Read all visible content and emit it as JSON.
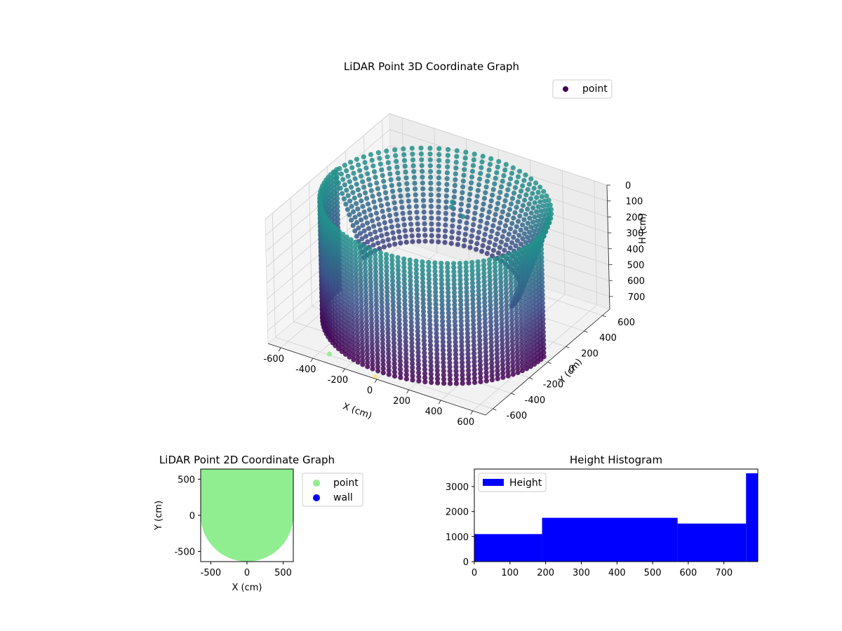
{
  "chart_data": [
    {
      "type": "scatter",
      "projection": "3d",
      "title": "LiDAR Point 3D Coordinate Graph",
      "xlabel": "X (cm)",
      "ylabel": "Y (cm)",
      "zlabel": "H (cm)",
      "xlim": [
        -680,
        680
      ],
      "ylim": [
        -680,
        680
      ],
      "zlim": [
        0,
        780
      ],
      "z_inverted": true,
      "xticks": [
        -600,
        -400,
        -200,
        0,
        200,
        400,
        600
      ],
      "yticks": [
        -600,
        -400,
        -200,
        0,
        200,
        400,
        600
      ],
      "zticks": [
        0,
        100,
        200,
        300,
        400,
        500,
        600,
        700
      ],
      "colormap": "viridis",
      "grid": true,
      "legend": {
        "position": "upper-right",
        "entries": [
          {
            "label": "point",
            "color": "#440154"
          }
        ]
      },
      "series": [
        {
          "name": "point",
          "shape": "half-cylinder wall of points, radius ≈ 640 cm, y ≤ 0 side spans heights 0–780 cm, far side (y > 0) as vertical scan lines",
          "radius": 640,
          "h_range": [
            0,
            780
          ]
        },
        {
          "shape": "small cluster near center at low height",
          "points": [
            {
              "x": 60,
              "y": 60,
              "h": 40
            },
            {
              "x": 120,
              "y": 80,
              "h": 90
            },
            {
              "x": 20,
              "y": 140,
              "h": 60
            }
          ]
        },
        {
          "shape": "isolated markers",
          "points": [
            {
              "x": -330,
              "y": -620,
              "h": 760,
              "color": "#90ee90"
            },
            {
              "x": -20,
              "y": -660,
              "h": 780,
              "color": "#ffe680"
            }
          ]
        }
      ]
    },
    {
      "type": "scatter",
      "title": "LiDAR Point 2D Coordinate Graph",
      "xlabel": "X (cm)",
      "ylabel": "Y (cm)",
      "xlim": [
        -640,
        640
      ],
      "ylim": [
        -640,
        640
      ],
      "xticks": [
        -500,
        0,
        500
      ],
      "yticks": [
        -500,
        0,
        500
      ],
      "legend": {
        "position": "outside-right",
        "entries": [
          {
            "label": "point",
            "color": "#90ee90"
          },
          {
            "label": "wall",
            "color": "#0000ff"
          }
        ]
      },
      "series": [
        {
          "name": "point",
          "color": "#90ee90",
          "shape": "filled region: full width for y ≥ 0, half-disc of radius ≈ 640 for y < 0"
        },
        {
          "name": "wall",
          "color": "#0000ff",
          "points": []
        }
      ]
    },
    {
      "type": "bar",
      "title": "Height Histogram",
      "xlim": [
        0,
        795
      ],
      "ylim": [
        0,
        3700
      ],
      "xticks": [
        0,
        100,
        200,
        300,
        400,
        500,
        600,
        700
      ],
      "yticks": [
        0,
        1000,
        2000,
        3000
      ],
      "color": "#0000ff",
      "legend": {
        "position": "upper-left",
        "entries": [
          {
            "label": "Height",
            "color": "#0000ff"
          }
        ]
      },
      "bins": [
        {
          "from": 0,
          "to": 190,
          "count": 1100
        },
        {
          "from": 190,
          "to": 570,
          "count": 1750
        },
        {
          "from": 570,
          "to": 762,
          "count": 1520
        },
        {
          "from": 762,
          "to": 795,
          "count": 3530
        }
      ]
    }
  ]
}
